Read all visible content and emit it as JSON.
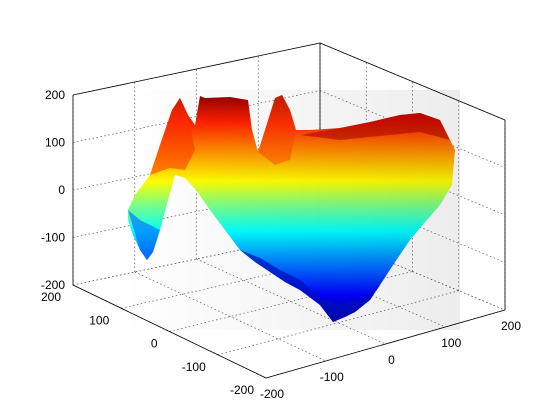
{
  "chart_data": {
    "type": "surface",
    "title": "",
    "xlabel": "",
    "ylabel": "",
    "zlabel": "",
    "colormap": "jet",
    "grid": true,
    "xlim": [
      -200,
      200
    ],
    "ylim": [
      -200,
      200
    ],
    "zlim": [
      -200,
      200
    ],
    "x_ticks": [
      "-200",
      "-100",
      "0",
      "100",
      "200"
    ],
    "y_ticks": [
      "-200",
      "-100",
      "0",
      "100",
      "200"
    ],
    "z_ticks": [
      "-200",
      "-100",
      "0",
      "100",
      "200"
    ],
    "surface_profile": {
      "description_of_rows": "approximate top-edge z and bottom-edge z along the front silhouette, sampled left to right",
      "top_edge_z": [
        0,
        60,
        130,
        150,
        120,
        160,
        140,
        100,
        150,
        110,
        130,
        140,
        150,
        155,
        160,
        170,
        175,
        165,
        140,
        120
      ],
      "bottom_edge_z": [
        -60,
        -140,
        -60,
        -20,
        -100,
        -150,
        -170,
        -180,
        -190,
        -195,
        -185,
        -160,
        -120,
        -90,
        -60,
        -20,
        10,
        40,
        60,
        80
      ]
    }
  }
}
